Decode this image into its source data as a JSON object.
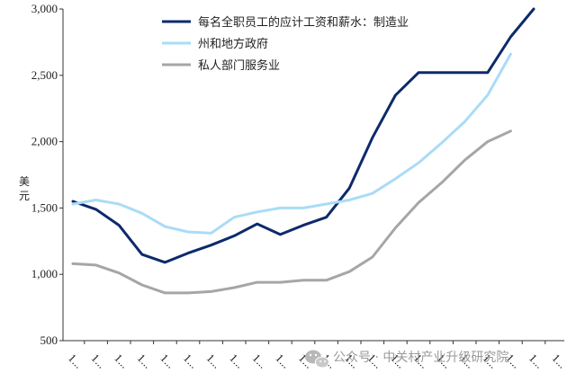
{
  "chart_data": {
    "type": "line",
    "ylabel": "美元",
    "ylim": [
      500,
      3000
    ],
    "yticks": [
      "500",
      "1,000",
      "1,500",
      "2,000",
      "2,500",
      "3,000"
    ],
    "x_tick_labels": [
      "1...",
      "1...",
      "1...",
      "1...",
      "1...",
      "1...",
      "1...",
      "1...",
      "1...",
      "1...",
      "1...",
      "1...",
      "1...",
      "1...",
      "1...",
      "1...",
      "1...",
      "1...",
      "1...",
      "1...",
      "1...",
      "1..."
    ],
    "x_points": 22,
    "series": [
      {
        "name": "每名全职员工的应计工资和薪水：制造业",
        "color": "#0d2a6b",
        "values": [
          1550,
          1490,
          1370,
          1150,
          1090,
          1160,
          1220,
          1290,
          1380,
          1300,
          1370,
          1430,
          1650,
          2030,
          2350,
          2520,
          2520,
          2520,
          2520,
          2790,
          3030,
          null
        ]
      },
      {
        "name": "州和地方政府",
        "color": "#a9dcf7",
        "values": [
          1530,
          1560,
          1530,
          1460,
          1360,
          1320,
          1310,
          1430,
          1470,
          1500,
          1500,
          1530,
          1560,
          1610,
          1720,
          1840,
          1990,
          2150,
          2350,
          2660,
          null,
          null
        ]
      },
      {
        "name": "私人部门服务业",
        "color": "#a6a6a6",
        "values": [
          1080,
          1070,
          1010,
          920,
          860,
          860,
          870,
          900,
          940,
          940,
          955,
          955,
          1020,
          1130,
          1350,
          1540,
          1690,
          1860,
          2000,
          2080,
          null,
          null
        ]
      }
    ],
    "legend_position": "top-center"
  },
  "watermark": {
    "text": "公众号 · 中关村产业升级研究院",
    "icon": "wechat-icon"
  }
}
